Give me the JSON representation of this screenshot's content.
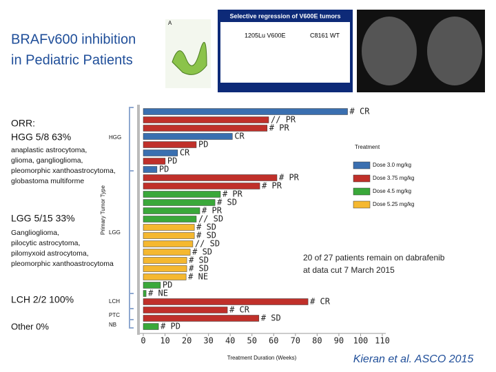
{
  "slide": {
    "title_lines": [
      "BRAFv600 inhibition",
      "in Pediatric Patients"
    ],
    "figure_a_label": "A",
    "inset_title": "Selective regression of V600E tumors",
    "inset_left": "1205Lu V600E",
    "inset_right": "C8161 WT",
    "orr": "ORR:",
    "hgg_rate": "HGG 5/8 63%",
    "hgg_types": [
      "anaplastic astrocytoma,",
      "glioma, ganglioglioma,",
      "pleomorphic xanthoastrocytoma,",
      "globastoma multiforme"
    ],
    "lgg_rate": "LGG 5/15 33%",
    "lgg_types": [
      "Ganglioglioma,",
      "pilocytic astrocytoma,",
      "pilomyxoid astrocytoma,",
      "pleomorphic xanthoastrocytoma"
    ],
    "lch_rate": "LCH 2/2 100%",
    "other_rate": "Other 0%",
    "citation": "Kieran et al. ASCO 2015"
  },
  "chart_data": {
    "type": "bar",
    "orientation": "horizontal",
    "xlabel": "Treatment Duration (Weeks)",
    "ylabel": "Primary Tumor Type",
    "xlim": [
      0,
      110
    ],
    "xticks": [
      0,
      10,
      20,
      30,
      40,
      50,
      60,
      70,
      80,
      90,
      100,
      110
    ],
    "groups": [
      "HGG",
      "LGG",
      "LCH",
      "PTC",
      "NB"
    ],
    "legend_title": "Treatment",
    "annotation": [
      "20 of 27 patients remain on dabrafenib",
      "at data cut 7 March 2015"
    ],
    "series": [
      {
        "name": "Dose 3.0 mg/kg",
        "color": "#3a6fb0",
        "values": [
          94,
          null,
          null,
          41,
          null,
          15.8,
          null,
          6.3,
          null,
          null,
          null,
          null,
          null,
          null,
          null,
          null,
          null,
          null,
          null,
          null,
          null,
          null,
          null,
          null,
          null,
          null,
          null
        ],
        "labels": [
          "# CR",
          null,
          null,
          "CR",
          null,
          "CR",
          null,
          "PD",
          null,
          null,
          null,
          null,
          null,
          null,
          null,
          null,
          null,
          null,
          null,
          null,
          null,
          null,
          null,
          null,
          null,
          null,
          null
        ]
      },
      {
        "name": "Dose 3.75 mg/kg",
        "color": "#c0302a",
        "values": [
          null,
          57.7,
          57,
          null,
          24.4,
          null,
          10.1,
          null,
          61.5,
          53.6,
          null,
          null,
          null,
          null,
          null,
          null,
          null,
          null,
          null,
          null,
          null,
          null,
          null,
          75.8,
          38.7,
          53.2,
          null
        ],
        "labels": [
          null,
          "// PR",
          "# PR",
          null,
          "PD",
          null,
          "PD",
          null,
          "# PR",
          "# PR",
          null,
          null,
          null,
          null,
          null,
          null,
          null,
          null,
          null,
          null,
          null,
          null,
          null,
          "# CR",
          "# CR",
          "# SD",
          null
        ]
      },
      {
        "name": "Dose 4.5 mg/kg",
        "color": "#3aa83a",
        "values": [
          null,
          null,
          null,
          null,
          null,
          null,
          null,
          null,
          null,
          null,
          35.5,
          33,
          26,
          24.4,
          null,
          null,
          null,
          null,
          null,
          null,
          null,
          7.9,
          1.3,
          null,
          null,
          null,
          7
        ],
        "labels": [
          null,
          null,
          null,
          null,
          null,
          null,
          null,
          null,
          null,
          null,
          "# PR",
          "# SD",
          "# PR",
          "// SD",
          null,
          null,
          null,
          null,
          null,
          null,
          null,
          "PD",
          "# NE",
          null,
          null,
          null,
          "# PD"
        ]
      },
      {
        "name": "Dose 5.25 mg/kg",
        "color": "#f5b830",
        "values": [
          null,
          null,
          null,
          null,
          null,
          null,
          null,
          null,
          null,
          null,
          null,
          null,
          null,
          null,
          23.5,
          23.5,
          22.8,
          21.6,
          20,
          20,
          19.7,
          null,
          null,
          null,
          null,
          null,
          null
        ],
        "labels": [
          null,
          null,
          null,
          null,
          null,
          null,
          null,
          null,
          null,
          null,
          null,
          null,
          null,
          null,
          "# SD",
          "# SD",
          "// SD",
          "# SD",
          "# SD",
          "# SD",
          "# NE",
          null,
          null,
          null,
          null,
          null,
          null
        ]
      }
    ]
  }
}
